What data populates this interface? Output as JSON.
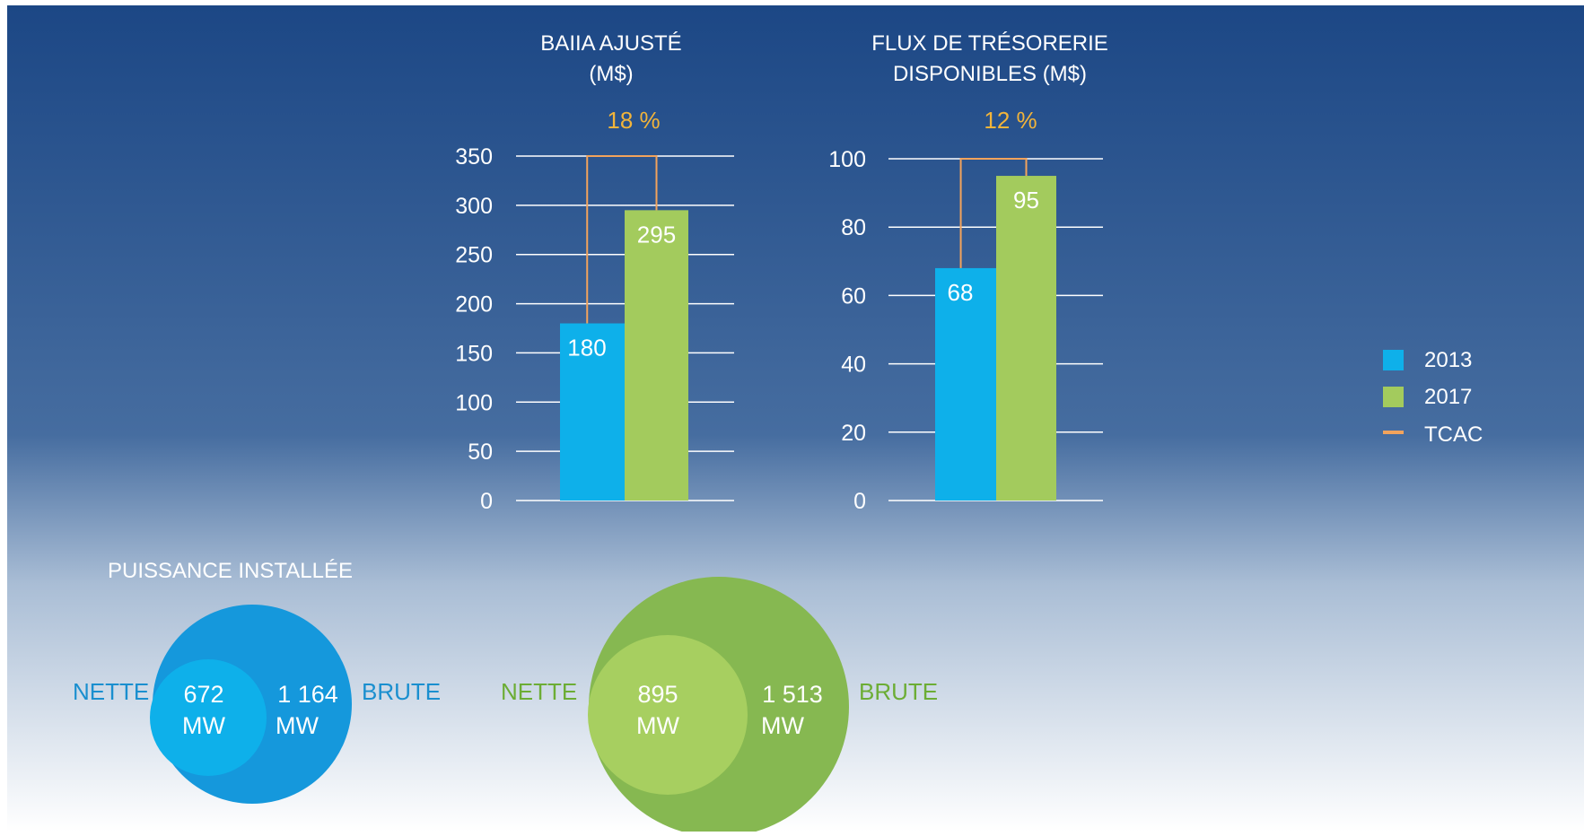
{
  "colors": {
    "bg_top": "#1c4785",
    "bg_mid": "#466da0",
    "bg_bottom": "#ffffff",
    "series_2013": "#0eb0ea",
    "series_2017": "#a3cb5d",
    "tcac": "#f2a35c",
    "pct_text": "#f2b43a",
    "circle_blue_outer": "#1598dc",
    "circle_blue_inner": "#0eb0ea",
    "circle_green_outer": "#86b851",
    "circle_green_inner": "#a7cf60",
    "label_blue": "#1a8fcf",
    "label_green": "#6cad35"
  },
  "chart_data": [
    {
      "type": "bar",
      "title": "BAIIA AJUSTÉ (M$)",
      "title_lines": [
        "BAIIA AJUSTÉ",
        "(M$)"
      ],
      "cagr_label": "18 %",
      "categories": [
        "2013",
        "2017"
      ],
      "series": [
        {
          "name": "2013",
          "values": [
            180,
            null
          ]
        },
        {
          "name": "2017",
          "values": [
            null,
            295
          ]
        }
      ],
      "values": [
        180,
        295
      ],
      "value_labels": [
        "180",
        "295"
      ],
      "tcac_level": 350,
      "ylim": [
        0,
        350
      ],
      "yticks": [
        0,
        50,
        100,
        150,
        200,
        250,
        300,
        350
      ],
      "ytick_labels": [
        "0",
        "50",
        "100",
        "150",
        "200",
        "250",
        "300",
        "350"
      ],
      "grid": true,
      "xlabel": "",
      "ylabel": ""
    },
    {
      "type": "bar",
      "title": "FLUX DE TRÉSORERIE DISPONIBLES (M$)",
      "title_lines": [
        "FLUX DE TRÉSORERIE",
        "DISPONIBLES (M$)"
      ],
      "cagr_label": "12 %",
      "categories": [
        "2013",
        "2017"
      ],
      "series": [
        {
          "name": "2013",
          "values": [
            68,
            null
          ]
        },
        {
          "name": "2017",
          "values": [
            null,
            95
          ]
        }
      ],
      "values": [
        68,
        95
      ],
      "value_labels": [
        "68",
        "95"
      ],
      "tcac_level": 100,
      "ylim": [
        0,
        100
      ],
      "yticks": [
        0,
        20,
        40,
        60,
        80,
        100
      ],
      "ytick_labels": [
        "0",
        "20",
        "40",
        "60",
        "80",
        "100"
      ],
      "grid": true,
      "xlabel": "",
      "ylabel": ""
    }
  ],
  "legend": {
    "placement": "right",
    "items": [
      {
        "label": "2013",
        "color": "#0eb0ea",
        "shape": "square"
      },
      {
        "label": "2017",
        "color": "#a3cb5d",
        "shape": "square"
      },
      {
        "label": "TCAC",
        "color": "#f2a35c",
        "shape": "line"
      }
    ]
  },
  "installed_power": {
    "title": "PUISSANCE INSTALLÉE",
    "groups": [
      {
        "year": "2013",
        "net_label": "NETTE",
        "gross_label": "BRUTE",
        "net_value": 672,
        "gross_value": 1164,
        "net_value_text": "672",
        "gross_value_text": "1 164",
        "unit": "MW",
        "color_scheme": "blue"
      },
      {
        "year": "2017",
        "net_label": "NETTE",
        "gross_label": "BRUTE",
        "net_value": 895,
        "gross_value": 1513,
        "net_value_text": "895",
        "gross_value_text": "1 513",
        "unit": "MW",
        "color_scheme": "green"
      }
    ]
  }
}
